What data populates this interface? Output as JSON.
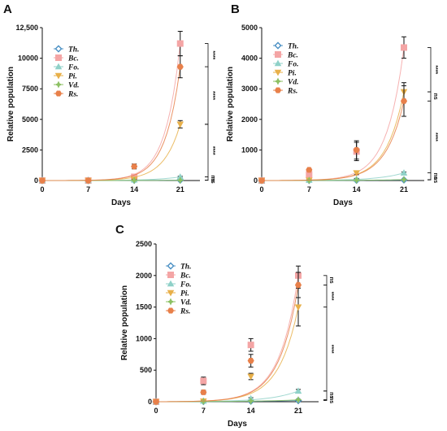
{
  "colors": {
    "Th": "#4a90c4",
    "Bc": "#f4a5a5",
    "Fo": "#8fd1c8",
    "Pi": "#e8b04a",
    "Vd": "#8cc063",
    "Rs": "#e8804a"
  },
  "chart_data": [
    {
      "panel": "A",
      "type": "line",
      "xlabel": "Days",
      "ylabel": "Relative population",
      "x": [
        0,
        7,
        14,
        21
      ],
      "xticks": [
        "0",
        "7",
        "14",
        "21"
      ],
      "ylim": [
        0,
        12500
      ],
      "yticks": [
        0,
        2500,
        5000,
        7500,
        10000,
        12500
      ],
      "ytick_labels": [
        "0",
        "2500",
        "5000",
        "7500",
        "10000",
        "12,500"
      ],
      "legend_position": "top-left",
      "series": [
        {
          "name": "Th.",
          "key": "Th",
          "marker": "diamond",
          "values": [
            0,
            0,
            20,
            30
          ],
          "err": [
            0,
            0,
            10,
            15
          ]
        },
        {
          "name": "Bc.",
          "key": "Bc",
          "marker": "square",
          "values": [
            0,
            0,
            300,
            11200
          ],
          "err": [
            0,
            0,
            80,
            1000
          ]
        },
        {
          "name": "Fo.",
          "key": "Fo",
          "marker": "triangle",
          "values": [
            0,
            0,
            50,
            300
          ],
          "err": [
            0,
            0,
            20,
            50
          ]
        },
        {
          "name": "Pi.",
          "key": "Pi",
          "marker": "triangle-down",
          "values": [
            0,
            0,
            100,
            4600
          ],
          "err": [
            0,
            0,
            50,
            300
          ]
        },
        {
          "name": "Vd.",
          "key": "Vd",
          "marker": "star",
          "values": [
            0,
            0,
            10,
            20
          ],
          "err": [
            0,
            0,
            5,
            10
          ]
        },
        {
          "name": "Rs.",
          "key": "Rs",
          "marker": "hexagon",
          "values": [
            0,
            0,
            1150,
            9300
          ],
          "err": [
            0,
            0,
            200,
            900
          ]
        }
      ],
      "brackets": [
        {
          "y1": 11200,
          "y2": 9300,
          "label": "****"
        },
        {
          "y1": 9300,
          "y2": 4600,
          "label": "****"
        },
        {
          "y1": 4600,
          "y2": 300,
          "label": "****"
        },
        {
          "y1": 300,
          "y2": 30,
          "label": "ns"
        },
        {
          "y1": 30,
          "y2": 20,
          "label": "ns"
        }
      ]
    },
    {
      "panel": "B",
      "type": "line",
      "xlabel": "Days",
      "ylabel": "Relative population",
      "x": [
        0,
        7,
        14,
        21
      ],
      "xticks": [
        "0",
        "7",
        "14",
        "21"
      ],
      "ylim": [
        0,
        5000
      ],
      "yticks": [
        0,
        1000,
        2000,
        3000,
        4000,
        5000
      ],
      "ytick_labels": [
        "0",
        "1000",
        "2000",
        "3000",
        "4000",
        "5000"
      ],
      "legend_position": "top-left",
      "series": [
        {
          "name": "Th.",
          "key": "Th",
          "marker": "diamond",
          "values": [
            0,
            5,
            10,
            20
          ],
          "err": [
            0,
            5,
            5,
            10
          ]
        },
        {
          "name": "Bc.",
          "key": "Bc",
          "marker": "square",
          "values": [
            0,
            200,
            950,
            4350
          ],
          "err": [
            0,
            50,
            300,
            350
          ]
        },
        {
          "name": "Fo.",
          "key": "Fo",
          "marker": "triangle",
          "values": [
            0,
            10,
            50,
            250
          ],
          "err": [
            0,
            5,
            20,
            30
          ]
        },
        {
          "name": "Pi.",
          "key": "Pi",
          "marker": "triangle-down",
          "values": [
            0,
            10,
            250,
            2900
          ],
          "err": [
            0,
            5,
            60,
            300
          ]
        },
        {
          "name": "Vd.",
          "key": "Vd",
          "marker": "star",
          "values": [
            0,
            5,
            10,
            30
          ],
          "err": [
            0,
            5,
            5,
            10
          ]
        },
        {
          "name": "Rs.",
          "key": "Rs",
          "marker": "hexagon",
          "values": [
            0,
            350,
            1000,
            2600
          ],
          "err": [
            0,
            40,
            300,
            500
          ]
        }
      ],
      "brackets": [
        {
          "y1": 4350,
          "y2": 2900,
          "label": "****"
        },
        {
          "y1": 2900,
          "y2": 2600,
          "label": "ns"
        },
        {
          "y1": 2600,
          "y2": 250,
          "label": "****"
        },
        {
          "y1": 250,
          "y2": 30,
          "label": "ns"
        },
        {
          "y1": 30,
          "y2": 20,
          "label": "ns"
        }
      ]
    },
    {
      "panel": "C",
      "type": "line",
      "xlabel": "Days",
      "ylabel": "Relative population",
      "x": [
        0,
        7,
        14,
        21
      ],
      "xticks": [
        "0",
        "7",
        "14",
        "21"
      ],
      "ylim": [
        0,
        2500
      ],
      "yticks": [
        0,
        500,
        1000,
        1500,
        2000,
        2500
      ],
      "ytick_labels": [
        "0",
        "500",
        "1000",
        "1500",
        "2000",
        "2500"
      ],
      "legend_position": "top-left",
      "series": [
        {
          "name": "Th.",
          "key": "Th",
          "marker": "diamond",
          "values": [
            0,
            5,
            10,
            20
          ],
          "err": [
            0,
            3,
            5,
            8
          ]
        },
        {
          "name": "Bc.",
          "key": "Bc",
          "marker": "square",
          "values": [
            0,
            330,
            900,
            2000
          ],
          "err": [
            0,
            60,
            100,
            150
          ]
        },
        {
          "name": "Fo.",
          "key": "Fo",
          "marker": "triangle",
          "values": [
            0,
            10,
            50,
            170
          ],
          "err": [
            0,
            5,
            15,
            25
          ]
        },
        {
          "name": "Pi.",
          "key": "Pi",
          "marker": "triangle-down",
          "values": [
            0,
            10,
            400,
            1500
          ],
          "err": [
            0,
            5,
            50,
            300
          ]
        },
        {
          "name": "Vd.",
          "key": "Vd",
          "marker": "star",
          "values": [
            0,
            5,
            10,
            30
          ],
          "err": [
            0,
            3,
            5,
            8
          ]
        },
        {
          "name": "Rs.",
          "key": "Rs",
          "marker": "hexagon",
          "values": [
            0,
            150,
            650,
            1850
          ],
          "err": [
            0,
            30,
            100,
            200
          ]
        }
      ],
      "brackets": [
        {
          "y1": 2000,
          "y2": 1850,
          "label": "ns"
        },
        {
          "y1": 1850,
          "y2": 1500,
          "label": "****"
        },
        {
          "y1": 1500,
          "y2": 170,
          "label": "****"
        },
        {
          "y1": 170,
          "y2": 30,
          "label": "ns"
        },
        {
          "y1": 30,
          "y2": 20,
          "label": "ns"
        }
      ]
    }
  ]
}
